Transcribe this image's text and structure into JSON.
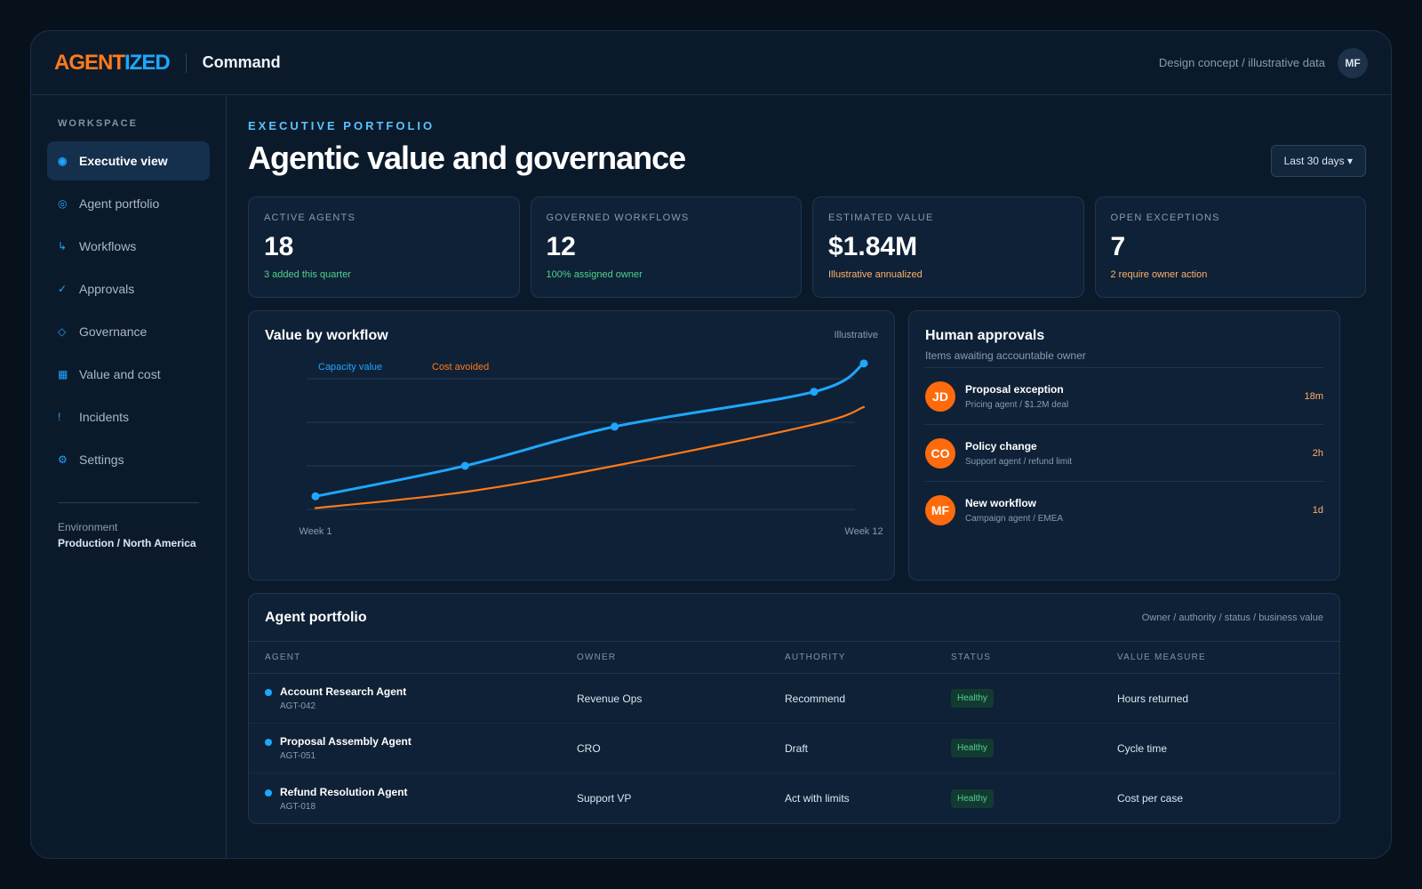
{
  "brand": {
    "logo_part1": "AGENT",
    "logo_part2": "IZED",
    "app_name": "Command"
  },
  "header": {
    "note": "Design concept / illustrative data",
    "user_initials": "MF"
  },
  "sidebar": {
    "heading": "WORKSPACE",
    "items": [
      {
        "label": "Executive view",
        "icon": "◉",
        "icon_name": "target-icon",
        "active": true
      },
      {
        "label": "Agent portfolio",
        "icon": "◎",
        "icon_name": "portfolio-icon"
      },
      {
        "label": "Workflows",
        "icon": "↳",
        "icon_name": "workflow-arrow-icon"
      },
      {
        "label": "Approvals",
        "icon": "✓",
        "icon_name": "check-icon"
      },
      {
        "label": "Governance",
        "icon": "◇",
        "icon_name": "diamond-icon"
      },
      {
        "label": "Value and cost",
        "icon": "▦",
        "icon_name": "grid-icon"
      },
      {
        "label": "Incidents",
        "icon": "!",
        "icon_name": "alert-icon"
      },
      {
        "label": "Settings",
        "icon": "⚙",
        "icon_name": "gear-icon"
      }
    ],
    "environment_label": "Environment",
    "environment_value": "Production / North America"
  },
  "main": {
    "eyebrow": "EXECUTIVE PORTFOLIO",
    "title": "Agentic value and governance",
    "date_range": "Last 30 days ▾"
  },
  "kpis": [
    {
      "label": "ACTIVE AGENTS",
      "value": "18",
      "sub": "3 added this quarter",
      "sub_color": "#4fd28f"
    },
    {
      "label": "GOVERNED WORKFLOWS",
      "value": "12",
      "sub": "100% assigned owner",
      "sub_color": "#4fd28f"
    },
    {
      "label": "ESTIMATED VALUE",
      "value": "$1.84M",
      "sub": "Illustrative annualized",
      "sub_color": "#ffb16a"
    },
    {
      "label": "OPEN EXCEPTIONS",
      "value": "7",
      "sub": "2 require owner action",
      "sub_color": "#ffb16a"
    }
  ],
  "chart_card": {
    "title": "Value by workflow",
    "tag": "Illustrative"
  },
  "chart_data": {
    "type": "line",
    "x": [
      1,
      4,
      7,
      11,
      12
    ],
    "x_tick_labels": [
      "Week 1",
      "Week 12"
    ],
    "xlim": [
      1,
      12
    ],
    "ylim": [
      0,
      3
    ],
    "grid": true,
    "legend_placement": "top-left",
    "series": [
      {
        "name": "Capacity value",
        "color": "#1ea7ff",
        "values": [
          0.3,
          1.0,
          1.9,
          2.7,
          3.35
        ],
        "markers": true
      },
      {
        "name": "Cost avoided",
        "color": "#ff7a1a",
        "values": [
          0.03,
          0.4,
          1.0,
          1.95,
          2.35
        ],
        "markers": false
      }
    ]
  },
  "approvals": {
    "title": "Human approvals",
    "subtitle": "Items awaiting accountable owner",
    "items": [
      {
        "initials": "JD",
        "title": "Proposal exception",
        "desc": "Pricing agent / $1.2M deal",
        "time": "18m"
      },
      {
        "initials": "CO",
        "title": "Policy change",
        "desc": "Support agent / refund limit",
        "time": "2h"
      },
      {
        "initials": "MF",
        "title": "New workflow",
        "desc": "Campaign agent / EMEA",
        "time": "1d"
      }
    ]
  },
  "portfolio": {
    "title": "Agent portfolio",
    "meta": "Owner / authority / status / business value",
    "columns": [
      "AGENT",
      "OWNER",
      "AUTHORITY",
      "STATUS",
      "VALUE MEASURE"
    ],
    "rows": [
      {
        "name": "Account Research Agent",
        "id": "AGT-042",
        "owner": "Revenue Ops",
        "authority": "Recommend",
        "status": "Healthy",
        "measure": "Hours returned"
      },
      {
        "name": "Proposal Assembly Agent",
        "id": "AGT-051",
        "owner": "CRO",
        "authority": "Draft",
        "status": "Healthy",
        "measure": "Cycle time"
      },
      {
        "name": "Refund Resolution Agent",
        "id": "AGT-018",
        "owner": "Support VP",
        "authority": "Act with limits",
        "status": "Healthy",
        "measure": "Cost per case"
      }
    ]
  },
  "colors": {
    "accent_blue": "#1ea7ff",
    "accent_orange": "#ff7a1a",
    "healthy_green": "#4fd28f"
  }
}
